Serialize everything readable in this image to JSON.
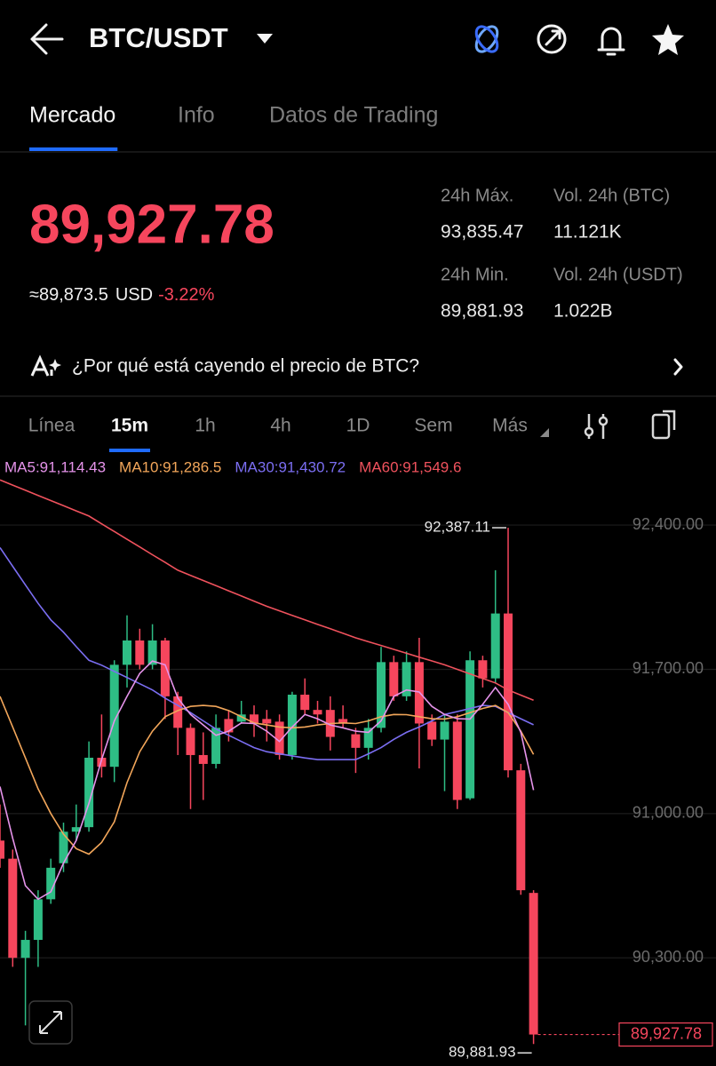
{
  "header": {
    "title": "BTC/USDT"
  },
  "tabs": {
    "items": [
      "Mercado",
      "Info",
      "Datos de Trading"
    ],
    "active": 0
  },
  "ticker": {
    "price": "89,927.78",
    "approx": "≈89,873.5",
    "currency": "USD",
    "change": "-3.22%",
    "stats": [
      {
        "label": "24h Máx.",
        "value": "93,835.47"
      },
      {
        "label": "Vol. 24h (BTC)",
        "value": "11.121K"
      },
      {
        "label": "24h Min.",
        "value": "89,881.93"
      },
      {
        "label": "Vol. 24h (USDT)",
        "value": "1.022B"
      }
    ]
  },
  "banner": {
    "text": "¿Por qué está cayendo el precio de BTC?"
  },
  "intervals": {
    "items": [
      "Línea",
      "15m",
      "1h",
      "4h",
      "1D",
      "Sem",
      "Más"
    ],
    "active": 1
  },
  "chart": {
    "type": "candlestick",
    "up_color": "#2ebd85",
    "down_color": "#f6465d",
    "ylim": [
      89775,
      92728
    ],
    "yticks": [
      {
        "value": 90300,
        "label": "90,300.00"
      },
      {
        "value": 91000,
        "label": "91,000.00"
      },
      {
        "value": 91700,
        "label": "91,700.00"
      },
      {
        "value": 92400,
        "label": "92,400.00"
      }
    ],
    "grid": true,
    "open": [
      90869,
      90781,
      90300,
      90387,
      90584,
      90759,
      90912,
      90934,
      91271,
      91227,
      91722,
      91840,
      91722,
      91840,
      91569,
      91416,
      91284,
      91241,
      91459,
      91446,
      91481,
      91459,
      91446,
      91284,
      91577,
      91503,
      91503,
      91459,
      91385,
      91319,
      91416,
      91735,
      91569,
      91735,
      91446,
      91359,
      91446,
      91074,
      91744,
      91656,
      91971,
      91210,
      90615
    ],
    "high": [
      91044,
      90825,
      90431,
      90628,
      90781,
      90956,
      91044,
      91350,
      91481,
      91744,
      91962,
      91897,
      91919,
      91853,
      91591,
      91437,
      91394,
      91481,
      91503,
      91547,
      91525,
      91503,
      91481,
      91591,
      91656,
      91547,
      91569,
      91525,
      91416,
      91459,
      91809,
      91766,
      91787,
      91853,
      91481,
      91481,
      91481,
      91787,
      91766,
      92181,
      92387.11,
      91241,
      90628
    ],
    "low": [
      90737,
      90256,
      89972,
      90256,
      90562,
      90716,
      90869,
      90912,
      91175,
      91153,
      91612,
      91700,
      91700,
      91459,
      91284,
      91022,
      91066,
      91219,
      91350,
      91437,
      91372,
      91350,
      91262,
      91262,
      91481,
      91437,
      91306,
      91416,
      91197,
      91262,
      91394,
      91547,
      91547,
      91219,
      91328,
      91109,
      91022,
      91066,
      91612,
      91634,
      91175,
      90606,
      89881.93
    ],
    "close": [
      90781,
      90300,
      90387,
      90584,
      90737,
      90912,
      90934,
      91271,
      91227,
      91722,
      91840,
      91722,
      91840,
      91569,
      91416,
      91284,
      91241,
      91416,
      91394,
      91481,
      91437,
      91437,
      91284,
      91577,
      91503,
      91481,
      91372,
      91437,
      91319,
      91416,
      91735,
      91569,
      91735,
      91437,
      91359,
      91446,
      91066,
      91744,
      91656,
      91971,
      91210,
      90628,
      89927.78
    ],
    "ma": [
      {
        "label": "MA5:91,114.43",
        "color": "#e593ea",
        "values": [
          91131,
          90880,
          90650,
          90584,
          90620,
          90760,
          90869,
          91050,
          91262,
          91450,
          91569,
          91680,
          91740,
          91722,
          91560,
          91481,
          91430,
          91380,
          91400,
          91440,
          91437,
          91400,
          91350,
          91420,
          91481,
          91460,
          91430,
          91416,
          91400,
          91394,
          91450,
          91569,
          91600,
          91590,
          91520,
          91481,
          91460,
          91459,
          91530,
          91612,
          91530,
          91394,
          91114
        ]
      },
      {
        "label": "MA10:91,286.5",
        "color": "#f2a65a",
        "values": [
          91569,
          91420,
          91270,
          91120,
          91000,
          90900,
          90830,
          90803,
          90860,
          90960,
          91150,
          91300,
          91400,
          91470,
          91500,
          91520,
          91525,
          91520,
          91500,
          91470,
          91440,
          91430,
          91420,
          91416,
          91420,
          91430,
          91437,
          91440,
          91437,
          91450,
          91470,
          91481,
          91480,
          91470,
          91460,
          91459,
          91470,
          91490,
          91510,
          91525,
          91490,
          91400,
          91287
        ]
      },
      {
        "label": "MA30:91,430.72",
        "color": "#7b6ef2",
        "values": [
          92291,
          92200,
          92110,
          92020,
          91940,
          91880,
          91810,
          91744,
          91720,
          91690,
          91660,
          91630,
          91600,
          91560,
          91525,
          91490,
          91450,
          91410,
          91380,
          91350,
          91320,
          91300,
          91290,
          91280,
          91270,
          91262,
          91262,
          91262,
          91262,
          91290,
          91320,
          91360,
          91394,
          91420,
          91450,
          91481,
          91495,
          91510,
          91525,
          91520,
          91490,
          91460,
          91431
        ]
      },
      {
        "label": "MA60:91,549.6",
        "color": "#f0525d",
        "values": [
          92619,
          92594,
          92569,
          92544,
          92519,
          92494,
          92469,
          92444,
          92406,
          92369,
          92331,
          92294,
          92256,
          92219,
          92181,
          92156,
          92131,
          92106,
          92081,
          92056,
          92031,
          92006,
          91984,
          91962,
          91940,
          91918,
          91897,
          91875,
          91853,
          91834,
          91816,
          91797,
          91778,
          91759,
          91741,
          91722,
          91700,
          91678,
          91656,
          91634,
          91600,
          91575,
          91550
        ]
      }
    ],
    "high_marker": {
      "value": 92387.11,
      "label": "92,387.11"
    },
    "low_marker": {
      "value": 89881.93,
      "label": "89,881.93"
    },
    "last_price": {
      "value": 89927.78,
      "label": "89,927.78"
    }
  }
}
